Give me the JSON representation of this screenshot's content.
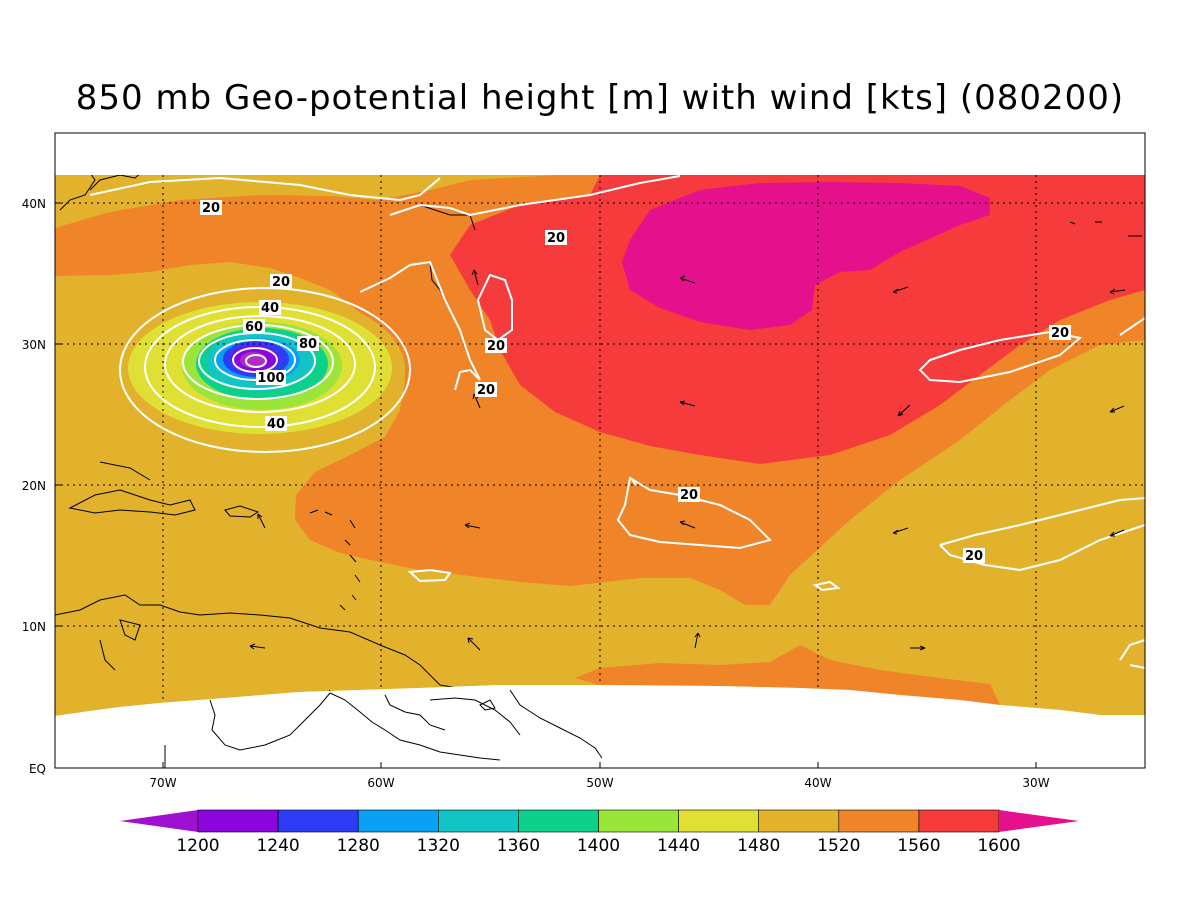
{
  "title": "850 mb Geo-potential height [m] with wind [kts] (080200)",
  "map": {
    "lon_range": [
      -75,
      -25
    ],
    "lat_range": [
      0,
      45
    ],
    "lon_ticks": [
      "70W",
      "60W",
      "50W",
      "40W",
      "30W"
    ],
    "lat_ticks": [
      "40N",
      "30N",
      "20N",
      "10N",
      "EQ"
    ],
    "grid": "dotted",
    "fill_colors": {
      "1480_1520": "#e3b22d",
      "1520_1560": "#ef8428",
      "1560_1600": "#f63b3c",
      "above_1600": "#e5118c",
      "1440_1480": "#e0df33"
    },
    "wind_contour_color": "#ffffff",
    "wind_contour_labels": [
      "20",
      "20",
      "20",
      "20",
      "40",
      "60",
      "80",
      "100",
      "40",
      "20",
      "20",
      "20",
      "20",
      "20",
      "20"
    ]
  },
  "colorbar": {
    "labels": [
      "1200",
      "1240",
      "1280",
      "1320",
      "1360",
      "1400",
      "1440",
      "1480",
      "1520",
      "1560",
      "1600"
    ],
    "colors": [
      "#a010d0",
      "#8a06dc",
      "#2e3cf5",
      "#0aa0f5",
      "#11c5c5",
      "#0dd08a",
      "#9be43a",
      "#e0df33",
      "#e3b22d",
      "#ef8428",
      "#f63b3c",
      "#e5118c"
    ]
  }
}
